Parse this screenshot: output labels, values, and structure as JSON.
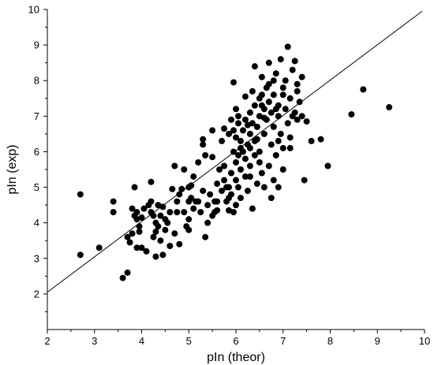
{
  "chart_data": {
    "type": "scatter",
    "title": "",
    "xlabel": "pIn (theor)",
    "ylabel": "pIn (exp)",
    "xlim": [
      2,
      10
    ],
    "ylim": [
      1,
      10
    ],
    "x_ticks": [
      2,
      3,
      4,
      5,
      6,
      7,
      8,
      9,
      10
    ],
    "y_ticks": [
      2,
      3,
      4,
      5,
      6,
      7,
      8,
      9,
      10
    ],
    "x_tick_labels": [
      "2",
      "3",
      "4",
      "5",
      "6",
      "7",
      "8",
      "9",
      "10"
    ],
    "y_tick_labels": [
      "2",
      "3",
      "4",
      "5",
      "6",
      "7",
      "8",
      "9",
      "10"
    ],
    "grid": false,
    "legend": "none",
    "reference_line": {
      "from": [
        2,
        2.05
      ],
      "to": [
        9.95,
        9.95
      ]
    },
    "series": [
      {
        "marker": "filled-circle",
        "color": "#000000",
        "points": [
          [
            2.7,
            4.8
          ],
          [
            2.7,
            3.1
          ],
          [
            3.1,
            3.3
          ],
          [
            3.4,
            4.6
          ],
          [
            3.4,
            4.3
          ],
          [
            3.6,
            2.45
          ],
          [
            3.7,
            2.6
          ],
          [
            3.7,
            3.6
          ],
          [
            3.75,
            3.45
          ],
          [
            3.8,
            3.7
          ],
          [
            3.8,
            4.4
          ],
          [
            3.85,
            5.0
          ],
          [
            3.85,
            4.2
          ],
          [
            3.9,
            3.3
          ],
          [
            3.9,
            4.3
          ],
          [
            3.9,
            4.1
          ],
          [
            3.95,
            3.9
          ],
          [
            3.95,
            3.75
          ],
          [
            4.0,
            3.3
          ],
          [
            4.0,
            4.15
          ],
          [
            4.05,
            4.4
          ],
          [
            4.1,
            3.2
          ],
          [
            4.15,
            4.5
          ],
          [
            4.2,
            4.6
          ],
          [
            4.2,
            4.3
          ],
          [
            4.2,
            5.15
          ],
          [
            4.25,
            4.2
          ],
          [
            4.25,
            3.6
          ],
          [
            4.3,
            3.05
          ],
          [
            4.3,
            4.0
          ],
          [
            4.3,
            3.75
          ],
          [
            4.35,
            4.5
          ],
          [
            4.35,
            3.9
          ],
          [
            4.4,
            4.2
          ],
          [
            4.4,
            3.5
          ],
          [
            4.45,
            3.1
          ],
          [
            4.45,
            4.45
          ],
          [
            4.5,
            3.8
          ],
          [
            4.5,
            4.1
          ],
          [
            4.55,
            4.0
          ],
          [
            4.6,
            3.35
          ],
          [
            4.6,
            4.3
          ],
          [
            4.65,
            4.95
          ],
          [
            4.7,
            5.6
          ],
          [
            4.7,
            3.7
          ],
          [
            4.75,
            4.3
          ],
          [
            4.75,
            4.6
          ],
          [
            4.8,
            4.8
          ],
          [
            4.85,
            4.95
          ],
          [
            4.9,
            5.5
          ],
          [
            4.9,
            4.3
          ],
          [
            4.95,
            3.9
          ],
          [
            5.0,
            4.6
          ],
          [
            5.0,
            3.8
          ],
          [
            5.0,
            4.1
          ],
          [
            5.05,
            4.7
          ],
          [
            5.05,
            5.05
          ],
          [
            5.1,
            4.4
          ],
          [
            5.1,
            5.3
          ],
          [
            5.15,
            4.6
          ],
          [
            5.2,
            5.7
          ],
          [
            5.25,
            4.3
          ],
          [
            5.3,
            4.9
          ],
          [
            5.3,
            6.2
          ],
          [
            5.3,
            6.35
          ],
          [
            5.35,
            5.9
          ],
          [
            5.4,
            4.5
          ],
          [
            5.4,
            4.0
          ],
          [
            5.45,
            4.8
          ],
          [
            5.5,
            4.2
          ],
          [
            5.5,
            5.85
          ],
          [
            5.55,
            4.6
          ],
          [
            5.55,
            4.3
          ],
          [
            5.6,
            5.1
          ],
          [
            5.6,
            4.35
          ],
          [
            5.65,
            5.5
          ],
          [
            5.7,
            4.9
          ],
          [
            5.7,
            6.3
          ],
          [
            5.75,
            5.2
          ],
          [
            5.75,
            5.6
          ],
          [
            5.8,
            4.6
          ],
          [
            5.8,
            5.0
          ],
          [
            5.85,
            4.7
          ],
          [
            5.85,
            4.35
          ],
          [
            5.85,
            6.5
          ],
          [
            5.9,
            5.4
          ],
          [
            5.9,
            4.8
          ],
          [
            5.95,
            4.3
          ],
          [
            5.95,
            6.0
          ],
          [
            5.95,
            6.6
          ],
          [
            6.0,
            5.2
          ],
          [
            6.0,
            5.7
          ],
          [
            6.0,
            6.4
          ],
          [
            6.0,
            4.5
          ],
          [
            6.05,
            5.9
          ],
          [
            6.05,
            5.0
          ],
          [
            6.05,
            6.8
          ],
          [
            6.1,
            6.3
          ],
          [
            6.1,
            5.5
          ],
          [
            6.1,
            4.7
          ],
          [
            6.15,
            6.0
          ],
          [
            6.15,
            6.6
          ],
          [
            6.2,
            5.3
          ],
          [
            6.2,
            5.8
          ],
          [
            6.2,
            6.9
          ],
          [
            6.25,
            4.9
          ],
          [
            6.25,
            6.2
          ],
          [
            6.3,
            6.5
          ],
          [
            6.3,
            5.6
          ],
          [
            6.3,
            7.1
          ],
          [
            6.35,
            4.4
          ],
          [
            6.35,
            6.8
          ],
          [
            6.4,
            5.9
          ],
          [
            6.4,
            6.3
          ],
          [
            6.4,
            7.3
          ],
          [
            6.45,
            5.1
          ],
          [
            6.45,
            6.7
          ],
          [
            6.5,
            7.0
          ],
          [
            6.5,
            7.5
          ],
          [
            6.5,
            6.0
          ],
          [
            6.55,
            5.4
          ],
          [
            6.55,
            8.1
          ],
          [
            6.6,
            7.2
          ],
          [
            6.6,
            6.5
          ],
          [
            6.6,
            5.0
          ],
          [
            6.65,
            7.8
          ],
          [
            6.65,
            6.9
          ],
          [
            6.7,
            5.6
          ],
          [
            6.7,
            7.4
          ],
          [
            6.7,
            8.5
          ],
          [
            6.75,
            6.2
          ],
          [
            6.75,
            7.1
          ],
          [
            6.8,
            5.2
          ],
          [
            6.8,
            6.7
          ],
          [
            6.8,
            7.6
          ],
          [
            6.85,
            8.2
          ],
          [
            6.85,
            5.9
          ],
          [
            6.9,
            7.0
          ],
          [
            6.9,
            7.3
          ],
          [
            6.95,
            6.5
          ],
          [
            6.95,
            8.6
          ],
          [
            7.0,
            7.8
          ],
          [
            7.0,
            6.1
          ],
          [
            7.0,
            5.5
          ],
          [
            7.05,
            7.2
          ],
          [
            7.05,
            8.0
          ],
          [
            7.1,
            8.95
          ],
          [
            7.1,
            6.8
          ],
          [
            7.15,
            7.5
          ],
          [
            7.15,
            6.4
          ],
          [
            7.2,
            7.0
          ],
          [
            7.2,
            8.3
          ],
          [
            7.25,
            7.1
          ],
          [
            7.3,
            7.7
          ],
          [
            7.3,
            6.9
          ],
          [
            7.35,
            7.4
          ],
          [
            7.4,
            8.1
          ],
          [
            7.4,
            7.0
          ],
          [
            7.45,
            5.2
          ],
          [
            7.5,
            6.85
          ],
          [
            7.6,
            6.3
          ],
          [
            7.8,
            6.35
          ],
          [
            7.95,
            5.6
          ],
          [
            8.45,
            7.05
          ],
          [
            8.7,
            7.75
          ],
          [
            9.25,
            7.25
          ],
          [
            6.3,
            5.3
          ],
          [
            6.5,
            5.7
          ],
          [
            6.9,
            5.0
          ],
          [
            6.75,
            4.7
          ],
          [
            5.85,
            5.0
          ],
          [
            5.6,
            4.6
          ],
          [
            5.35,
            3.6
          ],
          [
            5.2,
            4.6
          ],
          [
            5.0,
            5.0
          ],
          [
            4.8,
            3.4
          ],
          [
            6.1,
            6.1
          ],
          [
            6.3,
            6.1
          ],
          [
            6.55,
            7.6
          ],
          [
            6.4,
            8.4
          ],
          [
            6.7,
            7.9
          ],
          [
            5.95,
            7.95
          ],
          [
            7.3,
            7.9
          ],
          [
            7.0,
            7.6
          ],
          [
            6.6,
            6.95
          ],
          [
            6.85,
            7.2
          ],
          [
            7.15,
            6.1
          ],
          [
            6.45,
            6.35
          ],
          [
            6.2,
            7.55
          ],
          [
            6.9,
            6.3
          ],
          [
            5.5,
            6.6
          ],
          [
            5.75,
            6.65
          ],
          [
            6.0,
            7.2
          ],
          [
            6.25,
            6.75
          ],
          [
            7.25,
            8.55
          ],
          [
            6.55,
            7.3
          ],
          [
            6.8,
            8.0
          ],
          [
            6.35,
            7.7
          ],
          [
            5.9,
            6.9
          ],
          [
            6.05,
            7.0
          ]
        ]
      }
    ]
  }
}
